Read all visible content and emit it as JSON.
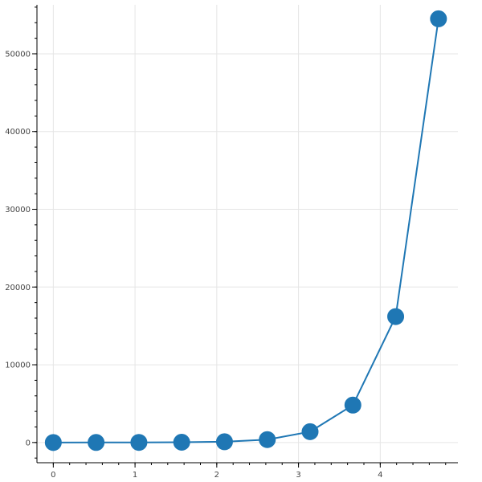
{
  "chart_data": {
    "type": "line",
    "title": "",
    "xlabel": "",
    "ylabel": "",
    "x": [
      0,
      0.5236,
      1.0472,
      1.5708,
      2.0944,
      2.618,
      3.1416,
      3.6652,
      4.1888,
      4.7124
    ],
    "series": [
      {
        "values": [
          1,
          4,
          12,
          34,
          98,
          376,
          1391,
          4810,
          16200,
          54500
        ],
        "color": "#1f77b4"
      }
    ],
    "markers": true,
    "xlim": [
      -0.2,
      4.95
    ],
    "ylim": [
      -2600,
      56300
    ],
    "x_ticks": [
      0,
      1,
      2,
      3,
      4
    ],
    "x_tick_labels": [
      "0",
      "1",
      "2",
      "3",
      "4"
    ],
    "y_ticks": [
      0,
      10000,
      20000,
      30000,
      40000,
      50000
    ],
    "y_tick_labels": [
      "0",
      "10000",
      "20000",
      "30000",
      "40000",
      "50000"
    ],
    "grid": true,
    "legend": "none"
  }
}
